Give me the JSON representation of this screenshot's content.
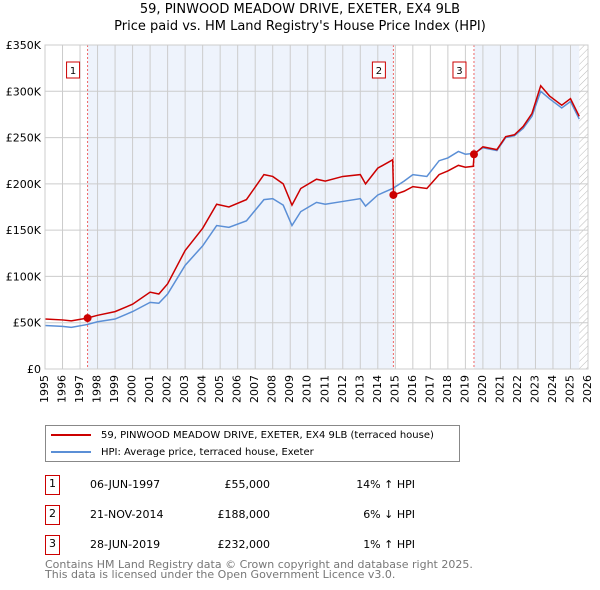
{
  "chart_data": {
    "type": "line",
    "title": "59, PINWOOD MEADOW DRIVE, EXETER, EX4 9LB",
    "subtitle": "Price paid vs. HM Land Registry's House Price Index (HPI)",
    "ylim": [
      0,
      350000
    ],
    "xlim": [
      1995,
      2026
    ],
    "yticks": [
      {
        "v": 0,
        "l": "£0"
      },
      {
        "v": 50000,
        "l": "£50K"
      },
      {
        "v": 100000,
        "l": "£100K"
      },
      {
        "v": 150000,
        "l": "£150K"
      },
      {
        "v": 200000,
        "l": "£200K"
      },
      {
        "v": 250000,
        "l": "£250K"
      },
      {
        "v": 300000,
        "l": "£300K"
      },
      {
        "v": 350000,
        "l": "£350K"
      }
    ],
    "xticks": [
      "1995",
      "1996",
      "1997",
      "1998",
      "1999",
      "2000",
      "2001",
      "2002",
      "2003",
      "2004",
      "2005",
      "2006",
      "2007",
      "2008",
      "2009",
      "2010",
      "2011",
      "2012",
      "2013",
      "2014",
      "2015",
      "2016",
      "2017",
      "2018",
      "2019",
      "2020",
      "2021",
      "2022",
      "2023",
      "2024",
      "2025",
      "2026"
    ],
    "series": [
      {
        "name": "59, PINWOOD MEADOW DRIVE, EXETER, EX4 9LB (terraced house)",
        "color": "#cc0000",
        "x": [
          1995,
          1996,
          1996.5,
          1997.4,
          1998,
          1999,
          2000,
          2001,
          2001.5,
          2002,
          2003,
          2004,
          2004.8,
          2005.5,
          2006.5,
          2007.5,
          2008,
          2008.6,
          2009.1,
          2009.6,
          2010.5,
          2011,
          2012,
          2013,
          2013.3,
          2014,
          2014.85,
          2014.9,
          2015.5,
          2016,
          2016.8,
          2017.5,
          2018,
          2018.6,
          2019,
          2019.45,
          2019.5,
          2020,
          2020.8,
          2021.3,
          2021.8,
          2022.3,
          2022.8,
          2023.3,
          2023.8,
          2024.5,
          2025,
          2025.5
        ],
        "y": [
          54000,
          53000,
          52000,
          55000,
          58000,
          62000,
          70000,
          83000,
          81000,
          92000,
          128000,
          152000,
          178000,
          175000,
          183000,
          210000,
          208000,
          200000,
          177000,
          195000,
          205000,
          203000,
          208000,
          210000,
          200000,
          217000,
          226000,
          188000,
          192000,
          197000,
          195000,
          210000,
          214000,
          220000,
          218000,
          219000,
          232000,
          240000,
          237000,
          251000,
          253000,
          262000,
          276000,
          306000,
          295000,
          285000,
          292000,
          273000
        ]
      },
      {
        "name": "HPI: Average price, terraced house, Exeter",
        "color": "#5b8fd6",
        "x": [
          1995,
          1996,
          1996.5,
          1997.4,
          1998,
          1999,
          2000,
          2001,
          2001.5,
          2002,
          2003,
          2004,
          2004.8,
          2005.5,
          2006.5,
          2007.5,
          2008,
          2008.6,
          2009.1,
          2009.6,
          2010.5,
          2011,
          2012,
          2013,
          2013.3,
          2014,
          2014.85,
          2015.5,
          2016,
          2016.8,
          2017.5,
          2018,
          2018.6,
          2019,
          2019.5,
          2020,
          2020.8,
          2021.3,
          2021.8,
          2022.3,
          2022.8,
          2023.3,
          2023.8,
          2024.5,
          2025,
          2025.5
        ],
        "y": [
          47000,
          46000,
          45000,
          48000,
          51000,
          54000,
          62000,
          72000,
          71000,
          81000,
          112000,
          133000,
          155000,
          153000,
          160000,
          183000,
          184000,
          177000,
          155000,
          170000,
          180000,
          178000,
          181000,
          184000,
          176000,
          188000,
          195000,
          203000,
          210000,
          208000,
          225000,
          228000,
          235000,
          232000,
          233000,
          239000,
          236000,
          250000,
          252000,
          260000,
          273000,
          300000,
          292000,
          282000,
          289000,
          270000
        ]
      }
    ],
    "sales": [
      {
        "n": "1",
        "x": 1997.43,
        "y": 55000
      },
      {
        "n": "2",
        "x": 2014.89,
        "y": 188000
      },
      {
        "n": "3",
        "x": 2019.49,
        "y": 232000
      }
    ]
  },
  "transactions": [
    {
      "n": "1",
      "date": "06-JUN-1997",
      "price": "£55,000",
      "hpi": "14% ↑ HPI"
    },
    {
      "n": "2",
      "date": "21-NOV-2014",
      "price": "£188,000",
      "hpi": "6% ↓ HPI"
    },
    {
      "n": "3",
      "date": "28-JUN-2019",
      "price": "£232,000",
      "hpi": "1% ↑ HPI"
    }
  ],
  "footer": [
    "Contains HM Land Registry data © Crown copyright and database right 2025.",
    "This data is licensed under the Open Government Licence v3.0."
  ]
}
